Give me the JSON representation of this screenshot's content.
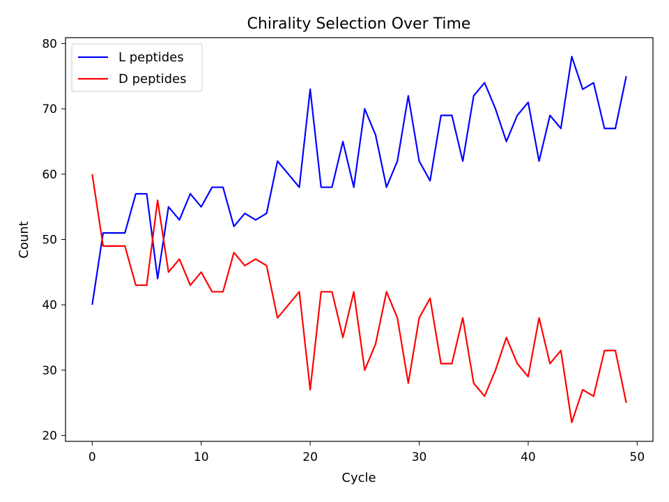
{
  "chart_data": {
    "type": "line",
    "title": "Chirality Selection Over Time",
    "xlabel": "Cycle",
    "ylabel": "Count",
    "xlim": [
      -2.45,
      51.45
    ],
    "ylim": [
      19.1,
      80.9
    ],
    "xticks": [
      0,
      10,
      20,
      30,
      40,
      50
    ],
    "yticks": [
      20,
      30,
      40,
      50,
      60,
      70,
      80
    ],
    "grid": false,
    "legend_position": "upper-left",
    "x": [
      0,
      1,
      2,
      3,
      4,
      5,
      6,
      7,
      8,
      9,
      10,
      11,
      12,
      13,
      14,
      15,
      16,
      17,
      18,
      19,
      20,
      21,
      22,
      23,
      24,
      25,
      26,
      27,
      28,
      29,
      30,
      31,
      32,
      33,
      34,
      35,
      36,
      37,
      38,
      39,
      40,
      41,
      42,
      43,
      44,
      45,
      46,
      47,
      48,
      49
    ],
    "series": [
      {
        "name": "L peptides",
        "color": "#0000ff",
        "values": [
          40,
          51,
          51,
          51,
          57,
          57,
          44,
          55,
          53,
          57,
          55,
          58,
          58,
          52,
          54,
          53,
          54,
          62,
          60,
          58,
          73,
          58,
          58,
          65,
          58,
          70,
          66,
          58,
          62,
          72,
          62,
          59,
          69,
          69,
          62,
          72,
          74,
          70,
          65,
          69,
          71,
          62,
          69,
          67,
          78,
          73,
          74,
          67,
          67,
          75
        ]
      },
      {
        "name": "D peptides",
        "color": "#ff0000",
        "values": [
          60,
          49,
          49,
          49,
          43,
          43,
          56,
          45,
          47,
          43,
          45,
          42,
          42,
          48,
          46,
          47,
          46,
          38,
          40,
          42,
          27,
          42,
          42,
          35,
          42,
          30,
          34,
          42,
          38,
          28,
          38,
          41,
          31,
          31,
          38,
          28,
          26,
          30,
          35,
          31,
          29,
          38,
          31,
          33,
          22,
          27,
          26,
          33,
          33,
          25
        ]
      }
    ]
  }
}
